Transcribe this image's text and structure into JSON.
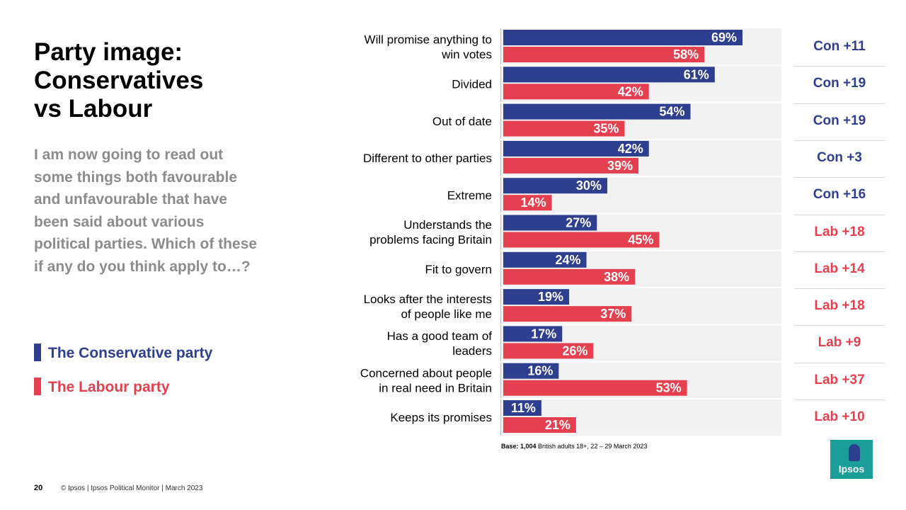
{
  "slide": {
    "title": "Party image:\nConservatives\nvs Labour",
    "question": "I am now going to read out some things both favourable and unfavourable that have been said about various political parties. Which of these if any do you think apply to…?",
    "legend": {
      "con_label": "The Conservative party",
      "lab_label": "The Labour party"
    },
    "base_bold": "Base: 1,004",
    "base_rest": " British adults 18+, 22 – 29 March 2023",
    "page_number": "20",
    "footer": "© Ipsos | Ipsos Political Monitor | March 2023",
    "logo_text": "Ipsos"
  },
  "colors": {
    "con": "#2e3f8f",
    "lab": "#e5404f",
    "plot_bg": "#f2f2f2",
    "question": "#8c8c8c"
  },
  "chart_data": {
    "type": "bar",
    "orientation": "horizontal",
    "title": "Party image: Conservatives vs Labour",
    "value_suffix": "%",
    "xlim": [
      0,
      77
    ],
    "categories": [
      "Will promise anything to\nwin votes",
      "Divided",
      "Out of date",
      "Different to other parties",
      "Extreme",
      "Understands the\nproblems facing Britain",
      "Fit to govern",
      "Looks after the interests\nof people like me",
      "Has a good team of\nleaders",
      "Concerned about people\nin real need in Britain",
      "Keeps its promises"
    ],
    "series": [
      {
        "name": "The Conservative party",
        "values": [
          69,
          61,
          54,
          42,
          30,
          27,
          24,
          19,
          17,
          16,
          11
        ]
      },
      {
        "name": "The Labour party",
        "values": [
          58,
          42,
          35,
          39,
          14,
          45,
          38,
          37,
          26,
          53,
          21
        ]
      }
    ],
    "differences": [
      {
        "text": "Con +11",
        "party": "con"
      },
      {
        "text": "Con +19",
        "party": "con"
      },
      {
        "text": "Con +19",
        "party": "con"
      },
      {
        "text": "Con +3",
        "party": "con"
      },
      {
        "text": "Con +16",
        "party": "con"
      },
      {
        "text": "Lab +18",
        "party": "lab"
      },
      {
        "text": "Lab +14",
        "party": "lab"
      },
      {
        "text": "Lab +18",
        "party": "lab"
      },
      {
        "text": "Lab +9",
        "party": "lab"
      },
      {
        "text": "Lab +37",
        "party": "lab"
      },
      {
        "text": "Lab +10",
        "party": "lab"
      }
    ]
  }
}
